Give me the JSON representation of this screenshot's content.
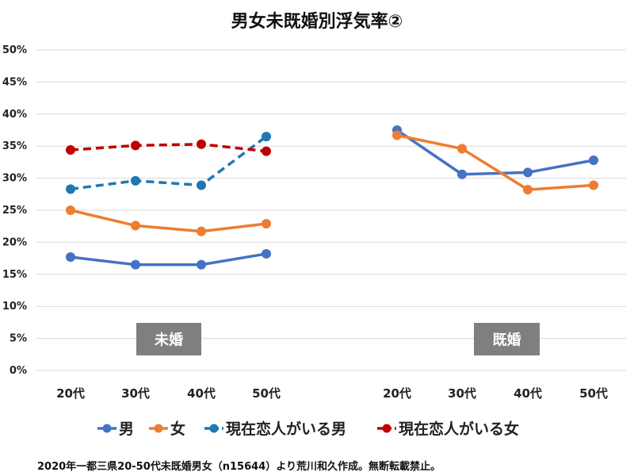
{
  "chart_data": {
    "type": "line",
    "title": "男女未既婚別浮気率②",
    "yticks": [
      "0%",
      "5%",
      "10%",
      "15%",
      "20%",
      "25%",
      "30%",
      "35%",
      "40%",
      "45%",
      "50%"
    ],
    "ylim": [
      0,
      50
    ],
    "grid": true,
    "legend_position": "bottom",
    "groups": [
      {
        "label": "未婚",
        "categories": [
          "20代",
          "30代",
          "40代",
          "50代"
        ],
        "series": [
          {
            "name": "男",
            "color": "#4472C4",
            "dashed": false,
            "values": [
              17.7,
              16.5,
              16.5,
              18.2
            ]
          },
          {
            "name": "女",
            "color": "#ED7D31",
            "dashed": false,
            "values": [
              25.0,
              22.6,
              21.7,
              22.9
            ]
          },
          {
            "name": "現在恋人がいる男",
            "color": "#1F77B4",
            "dashed": true,
            "values": [
              28.3,
              29.6,
              28.9,
              36.5
            ]
          },
          {
            "name": "現在恋人がいる女",
            "color": "#C00000",
            "dashed": true,
            "values": [
              34.4,
              35.1,
              35.3,
              34.2
            ]
          }
        ]
      },
      {
        "label": "既婚",
        "categories": [
          "20代",
          "30代",
          "40代",
          "50代"
        ],
        "series": [
          {
            "name": "男",
            "color": "#4472C4",
            "dashed": false,
            "values": [
              37.5,
              30.6,
              30.9,
              32.8
            ]
          },
          {
            "name": "女",
            "color": "#ED7D31",
            "dashed": false,
            "values": [
              36.7,
              34.6,
              28.2,
              28.9
            ]
          }
        ]
      }
    ],
    "legend": [
      {
        "name": "男",
        "color": "#4472C4",
        "dashed": false
      },
      {
        "name": "女",
        "color": "#ED7D31",
        "dashed": false
      },
      {
        "name": "現在恋人がいる男",
        "color": "#1F77B4",
        "dashed": true
      },
      {
        "name": "現在恋人がいる女",
        "color": "#C00000",
        "dashed": true
      }
    ],
    "group_label_color": "#7F7F7F"
  },
  "footnote": "2020年一都三県20-50代未既婚男女（n15644）より荒川和久作成。無断転載禁止。"
}
